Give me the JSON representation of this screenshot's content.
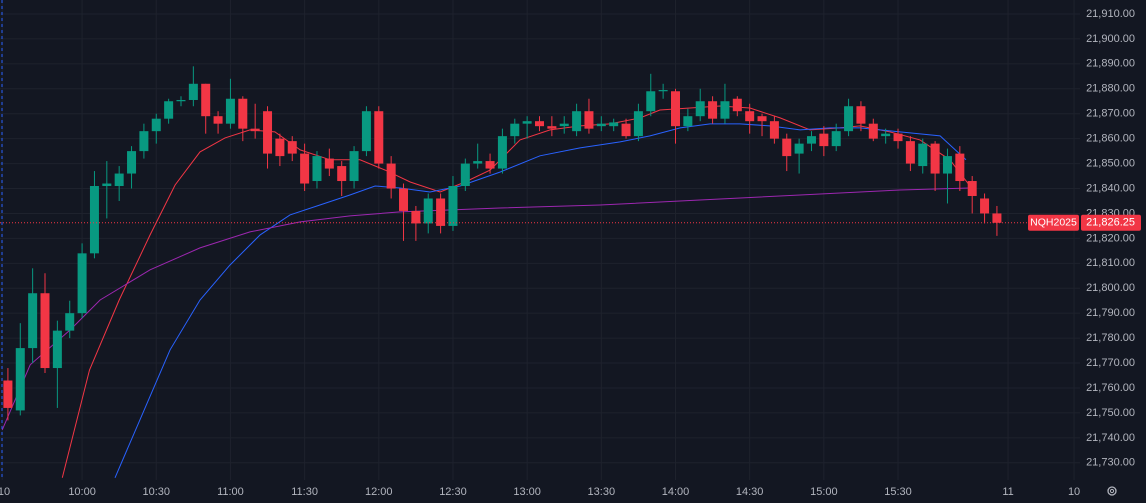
{
  "chart_data": {
    "type": "candlestick",
    "xlim": [
      566.8,
      1003.6
    ],
    "ylim": [
      21723.1,
      21915.6
    ],
    "grid": true,
    "up_color": "#089981",
    "down_color": "#f23645",
    "xticks": [
      {
        "value": 567.7,
        "label": "10"
      },
      {
        "value": 600,
        "label": "10:00"
      },
      {
        "value": 630,
        "label": "10:30"
      },
      {
        "value": 660,
        "label": "11:00"
      },
      {
        "value": 690,
        "label": "11:30"
      },
      {
        "value": 720,
        "label": "12:00"
      },
      {
        "value": 750,
        "label": "12:30"
      },
      {
        "value": 780,
        "label": "13:00"
      },
      {
        "value": 810,
        "label": "13:30"
      },
      {
        "value": 840,
        "label": "14:00"
      },
      {
        "value": 870,
        "label": "14:30"
      },
      {
        "value": 900,
        "label": "15:00"
      },
      {
        "value": 930,
        "label": "15:30"
      },
      {
        "value": 974.5,
        "label": "11"
      },
      {
        "value": 1001.2,
        "label": "10"
      }
    ],
    "yticks": [
      {
        "value": 21730,
        "label": "21,730.00"
      },
      {
        "value": 21740,
        "label": "21,740.00"
      },
      {
        "value": 21750,
        "label": "21,750.00"
      },
      {
        "value": 21760,
        "label": "21,760.00"
      },
      {
        "value": 21770,
        "label": "21,770.00"
      },
      {
        "value": 21780,
        "label": "21,780.00"
      },
      {
        "value": 21790,
        "label": "21,790.00"
      },
      {
        "value": 21800,
        "label": "21,800.00"
      },
      {
        "value": 21810,
        "label": "21,810.00"
      },
      {
        "value": 21820,
        "label": "21,820.00"
      },
      {
        "value": 21830,
        "label": "21,830.00"
      },
      {
        "value": 21840,
        "label": "21,840.00"
      },
      {
        "value": 21850,
        "label": "21,850.00"
      },
      {
        "value": 21860,
        "label": "21,860.00"
      },
      {
        "value": 21870,
        "label": "21,870.00"
      },
      {
        "value": 21880,
        "label": "21,880.00"
      },
      {
        "value": 21890,
        "label": "21,890.00"
      },
      {
        "value": 21900,
        "label": "21,900.00"
      },
      {
        "value": 21910,
        "label": "21,910.00"
      }
    ],
    "x": [
      570,
      575,
      580,
      585,
      590,
      595,
      600,
      605,
      610,
      615,
      620,
      625,
      630,
      635,
      640,
      645,
      650,
      655,
      660,
      665,
      670,
      675,
      680,
      685,
      690,
      695,
      700,
      705,
      710,
      715,
      720,
      725,
      730,
      735,
      740,
      745,
      750,
      755,
      760,
      765,
      770,
      775,
      780,
      785,
      790,
      795,
      800,
      805,
      810,
      815,
      820,
      825,
      830,
      835,
      840,
      845,
      850,
      855,
      860,
      865,
      870,
      875,
      880,
      885,
      890,
      895,
      900,
      905,
      910,
      915,
      920,
      925,
      930,
      935,
      940,
      945,
      950,
      955,
      960,
      965,
      970
    ],
    "open": [
      21763,
      21751,
      21776,
      21798,
      21768,
      21783,
      21790,
      21814,
      21841,
      21841,
      21846,
      21855,
      21863,
      21868,
      21875,
      21875.5,
      21882,
      21869,
      21866,
      21876,
      21864,
      21871,
      21860,
      21859,
      21854,
      21843,
      21852,
      21849,
      21843,
      21855,
      21871,
      21850,
      21840,
      21831,
      21826,
      21836,
      21825,
      21841,
      21850,
      21851,
      21848,
      21861,
      21866,
      21867,
      21865,
      21865,
      21863,
      21871,
      21865,
      21865,
      21866,
      21861,
      21871,
      21879,
      21879,
      21865,
      21869,
      21875,
      21868,
      21876,
      21871,
      21869,
      21867,
      21860,
      21854,
      21858,
      21862,
      21857,
      21863,
      21873,
      21866,
      21861,
      21862,
      21859,
      21849,
      21858,
      21846,
      21854,
      21843,
      21836,
      21830
    ],
    "high": [
      21768,
      21786,
      21808,
      21806,
      21787,
      21795,
      21818,
      21847,
      21851,
      21849,
      21857,
      21866,
      21870,
      21876,
      21877,
      21889,
      21882,
      21871,
      21884,
      21877,
      21874,
      21873,
      21862,
      21861,
      21858,
      21855,
      21856,
      21851,
      21857,
      21873,
      21873,
      21853,
      21842,
      21833,
      21838,
      21838,
      21845,
      21852,
      21858,
      21854,
      21864,
      21868,
      21869,
      21869,
      21869,
      21869,
      21874,
      21876,
      21869,
      21868,
      21868,
      21874,
      21886,
      21882,
      21880,
      21872,
      21880,
      21877,
      21882,
      21877,
      21874,
      21870,
      21869,
      21862,
      21860,
      21863,
      21865,
      21866,
      21876,
      21875,
      21868,
      21864,
      21864,
      21861,
      21860,
      21859,
      21856,
      21857,
      21845,
      21838,
      21833
    ],
    "low": [
      21747,
      21749,
      21770,
      21766,
      21752,
      21780,
      21788,
      21812,
      21828,
      21835,
      21840,
      21852,
      21858,
      21866,
      21873,
      21873,
      21862,
      21862,
      21864,
      21859,
      21860,
      21848,
      21849,
      21851,
      21839,
      21840,
      21845,
      21837,
      21840,
      21853,
      21848,
      21836,
      21819,
      21819,
      21822,
      21822,
      21823,
      21839,
      21848,
      21846,
      21846,
      21858,
      21860,
      21863,
      21861,
      21862,
      21861,
      21862,
      21863,
      21863,
      21860,
      21859,
      21869,
      21876,
      21858,
      21863,
      21867,
      21866,
      21866,
      21869,
      21862,
      21861,
      21858,
      21847,
      21846,
      21855,
      21853,
      21855,
      21861,
      21863,
      21859,
      21858,
      21856,
      21847,
      21846,
      21839,
      21834,
      21839,
      21830,
      21826,
      21821
    ],
    "close": [
      21752,
      21776,
      21798,
      21768,
      21783,
      21790,
      21814,
      21841,
      21842,
      21846,
      21855,
      21863,
      21868,
      21875,
      21875.5,
      21882,
      21869,
      21866,
      21876,
      21864,
      21863,
      21854,
      21853,
      21854,
      21842,
      21853,
      21848,
      21843,
      21855,
      21871,
      21850,
      21840,
      21831,
      21826,
      21836,
      21825,
      21841,
      21850,
      21851,
      21848,
      21861,
      21866,
      21867,
      21865,
      21864,
      21866,
      21871,
      21864,
      21866,
      21866.5,
      21861,
      21871,
      21879,
      21879.5,
      21865,
      21869,
      21875,
      21868,
      21875,
      21871,
      21867,
      21867,
      21860,
      21853,
      21858,
      21861,
      21857,
      21863,
      21873,
      21866,
      21860,
      21862,
      21859,
      21850,
      21858,
      21846,
      21853,
      21843,
      21837,
      21830,
      21826.25
    ],
    "series": [
      {
        "color": "#f23645",
        "x": [
          592,
          603,
          615,
          627.5,
          637.6,
          647.7,
          657.8,
          667.9,
          678,
          688.2,
          700.3,
          712.4,
          722.6,
          732.7,
          744.8,
          754.9,
          765,
          777.1,
          789.3,
          801.4,
          813.5,
          825.7,
          833.7,
          845.9,
          858,
          870.1,
          882.3,
          894.4,
          906.5,
          914.6,
          926.7,
          938.9,
          951,
          959.1
        ],
        "values": [
          21724,
          21767.2,
          21795.3,
          21821.4,
          21841.4,
          21854.7,
          21860.3,
          21863.5,
          21862.7,
          21855.5,
          21851.5,
          21851.5,
          21847.4,
          21842.6,
          21838.6,
          21842.6,
          21847.4,
          21859.5,
          21863.5,
          21865.1,
          21865.9,
          21868.3,
          21871.5,
          21872.3,
          21873.1,
          21872.3,
          21868.3,
          21863.5,
          21864.3,
          21865.1,
          21862.7,
          21859.5,
          21851.5,
          21841
        ]
      },
      {
        "color": "#2962ff",
        "x": [
          613.3,
          623.4,
          635.6,
          647.7,
          659.8,
          672,
          684.1,
          696.2,
          708.3,
          718.5,
          728.6,
          740.7,
          752.9,
          769,
          785.2,
          801.4,
          817.6,
          829.7,
          841.9,
          854,
          866.1,
          878.2,
          890.4,
          902.5,
          914.6,
          930.8,
          947,
          957.5
        ],
        "values": [
          21724,
          21747.2,
          21775.3,
          21795.3,
          21809.3,
          21821.4,
          21829.4,
          21833.4,
          21837.4,
          21841,
          21840.2,
          21838.6,
          21841,
          21846.6,
          21853.1,
          21856.3,
          21858.7,
          21861.1,
          21864.3,
          21865.9,
          21865.9,
          21865.1,
          21863.5,
          21864.3,
          21864.3,
          21862.7,
          21861.1,
          21851.5
        ]
      },
      {
        "color": "#9c27b0",
        "x": [
          567.7,
          579,
          595.2,
          607.3,
          627.5,
          647.7,
          667.9,
          688.2,
          708.4,
          728.6,
          769,
          809.5,
          849.9,
          890.4,
          930.8,
          959.1
        ],
        "values": [
          21743.2,
          21769.3,
          21783.3,
          21795.3,
          21807.4,
          21816.2,
          21822.6,
          21826.6,
          21829,
          21830.6,
          21832.2,
          21833.4,
          21835.4,
          21837.4,
          21839.4,
          21840.2
        ]
      }
    ],
    "last_price": {
      "symbol": "NQH2025",
      "label": "21,826.25",
      "value": 21826.25
    }
  }
}
